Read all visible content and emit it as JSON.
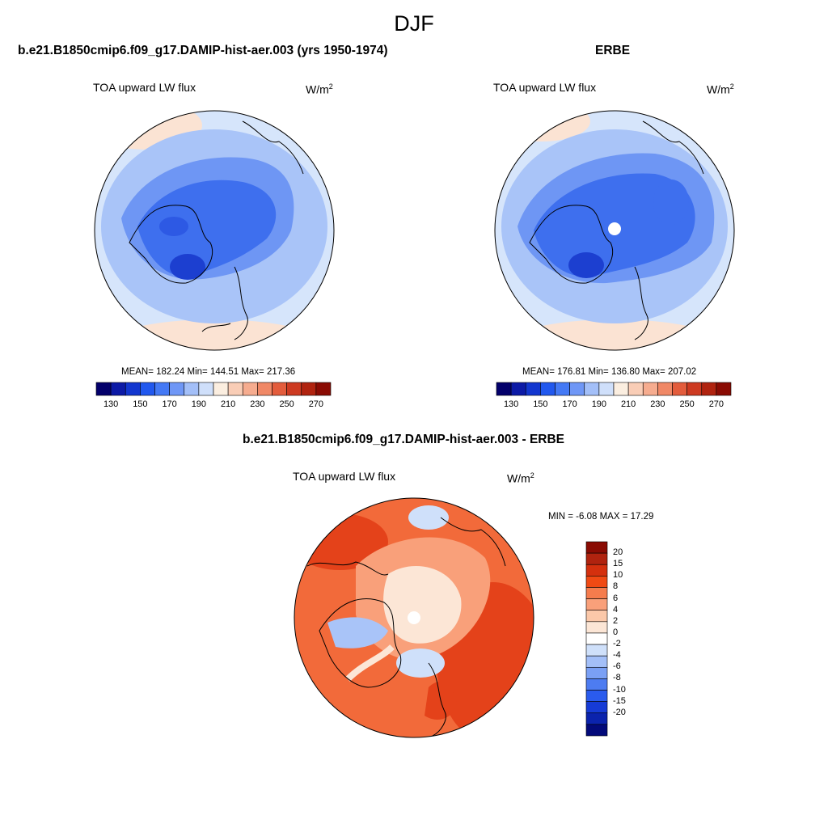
{
  "figure": {
    "title": "DJF"
  },
  "panels": [
    {
      "title": "b.e21.B1850cmip6.f09_g17.DAMIP-hist-aer.003 (yrs 1950-1974)",
      "variable": "TOA upward LW flux",
      "units_base": "W/m",
      "units_exp": "2",
      "stats": "MEAN= 182.24  Min= 144.51  Max= 217.36",
      "colorbar": {
        "colors": [
          "#03006b",
          "#0c1aa6",
          "#1236cf",
          "#2158ee",
          "#4479f5",
          "#6f97f6",
          "#a3bff8",
          "#cfdffa",
          "#fbeee0",
          "#f9cdb6",
          "#f6ac8f",
          "#f08866",
          "#e35c3c",
          "#cd3a21",
          "#b0230f",
          "#8a0b03"
        ],
        "tick_labels": [
          "130",
          "150",
          "170",
          "190",
          "210",
          "230",
          "250",
          "270"
        ]
      }
    },
    {
      "title": "ERBE",
      "variable": "TOA upward LW flux",
      "units_base": "W/m",
      "units_exp": "2",
      "stats": "MEAN= 176.81  Min= 136.80  Max= 207.02",
      "colorbar": {
        "colors": [
          "#03006b",
          "#0c1aa6",
          "#1236cf",
          "#2158ee",
          "#4479f5",
          "#6f97f6",
          "#a3bff8",
          "#cfdffa",
          "#fbeee0",
          "#f9cdb6",
          "#f6ac8f",
          "#f08866",
          "#e35c3c",
          "#cd3a21",
          "#b0230f",
          "#8a0b03"
        ],
        "tick_labels": [
          "130",
          "150",
          "170",
          "190",
          "210",
          "230",
          "250",
          "270"
        ]
      }
    },
    {
      "title": "b.e21.B1850cmip6.f09_g17.DAMIP-hist-aer.003 - ERBE",
      "variable": "TOA upward LW flux",
      "units": "W/m2",
      "units_base": "W/m",
      "units_exp": "2",
      "stats": "MIN =  -6.08 MAX =  17.29",
      "colorbar": {
        "colors": [
          "#8a0b03",
          "#b0230f",
          "#d4300e",
          "#f04a14",
          "#f57c4d",
          "#f9a07a",
          "#fbc8a9",
          "#fce6d6",
          "#ffffff",
          "#cfe0fa",
          "#a3bff8",
          "#7aa0f5",
          "#4d7cf1",
          "#2a5bed",
          "#163bd6",
          "#0b23ad",
          "#030a7a"
        ],
        "tick_labels": [
          "20",
          "15",
          "10",
          "8",
          "6",
          "4",
          "2",
          "0",
          "-2",
          "-4",
          "-6",
          "-8",
          "-10",
          "-15",
          "-20"
        ]
      }
    }
  ],
  "colors": {
    "deep_blue": "#1f4fd6",
    "mid_blue": "#4a7cf0",
    "light_blue": "#a9c4f8",
    "pale_blue": "#d6e5fb",
    "pale_peach": "#fbe3d3",
    "orange": "#f26a3a",
    "red_orange": "#e4421a"
  }
}
